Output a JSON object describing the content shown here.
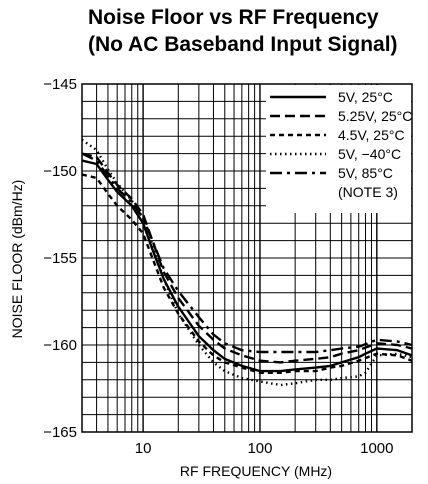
{
  "chart_data": {
    "type": "line",
    "title_line1": "Noise Floor vs RF Frequency",
    "title_line2": "(No AC Baseband Input Signal)",
    "xlabel": "RF FREQUENCY (MHz)",
    "ylabel": "NOISE FLOOR (dBm/Hz)",
    "x_scale": "log",
    "xlim": [
      3,
      2000
    ],
    "ylim": [
      -165,
      -145
    ],
    "x_ticks": [
      10,
      100,
      1000
    ],
    "x_tick_labels": [
      "10",
      "100",
      "1000"
    ],
    "y_ticks": [
      -145,
      -150,
      -155,
      -160,
      -165
    ],
    "y_tick_labels": [
      "−145",
      "−150",
      "−155",
      "−160",
      "−165"
    ],
    "grid": true,
    "legend_position": "top-right",
    "legend_note": "(NOTE 3)",
    "series": [
      {
        "name": "5V, 25°C",
        "dash": "solid",
        "points": [
          [
            3,
            -149.4
          ],
          [
            4,
            -149.6
          ],
          [
            5,
            -150.5
          ],
          [
            6,
            -151.2
          ],
          [
            8,
            -152.0
          ],
          [
            10,
            -153.0
          ],
          [
            12,
            -154.5
          ],
          [
            15,
            -156.2
          ],
          [
            20,
            -157.8
          ],
          [
            30,
            -159.5
          ],
          [
            40,
            -160.3
          ],
          [
            50,
            -160.8
          ],
          [
            70,
            -161.2
          ],
          [
            100,
            -161.5
          ],
          [
            150,
            -161.5
          ],
          [
            200,
            -161.4
          ],
          [
            300,
            -161.3
          ],
          [
            400,
            -161.2
          ],
          [
            500,
            -161.0
          ],
          [
            700,
            -160.7
          ],
          [
            800,
            -160.5
          ],
          [
            1000,
            -160.2
          ],
          [
            1500,
            -160.3
          ],
          [
            2000,
            -160.6
          ]
        ]
      },
      {
        "name": "5.25V, 25°C",
        "dash": "long-dash",
        "points": [
          [
            3,
            -149.0
          ],
          [
            4,
            -149.2
          ],
          [
            5,
            -150.1
          ],
          [
            6,
            -150.8
          ],
          [
            8,
            -151.6
          ],
          [
            10,
            -152.5
          ],
          [
            12,
            -154.0
          ],
          [
            15,
            -155.8
          ],
          [
            20,
            -157.3
          ],
          [
            30,
            -158.9
          ],
          [
            40,
            -159.7
          ],
          [
            50,
            -160.2
          ],
          [
            70,
            -160.6
          ],
          [
            100,
            -160.9
          ],
          [
            150,
            -161.0
          ],
          [
            200,
            -160.9
          ],
          [
            300,
            -160.8
          ],
          [
            400,
            -160.7
          ],
          [
            500,
            -160.5
          ],
          [
            700,
            -160.3
          ],
          [
            1000,
            -159.9
          ],
          [
            1500,
            -160.0
          ],
          [
            2000,
            -160.2
          ]
        ]
      },
      {
        "name": "4.5V, 25°C",
        "dash": "short-dash",
        "points": [
          [
            3,
            -150.2
          ],
          [
            4,
            -150.4
          ],
          [
            5,
            -151.3
          ],
          [
            6,
            -152.0
          ],
          [
            8,
            -152.8
          ],
          [
            10,
            -153.6
          ],
          [
            12,
            -155.0
          ],
          [
            15,
            -156.7
          ],
          [
            20,
            -158.2
          ],
          [
            30,
            -159.8
          ],
          [
            40,
            -160.6
          ],
          [
            50,
            -161.0
          ],
          [
            70,
            -161.3
          ],
          [
            100,
            -161.6
          ],
          [
            150,
            -161.6
          ],
          [
            200,
            -161.5
          ],
          [
            300,
            -161.5
          ],
          [
            400,
            -161.3
          ],
          [
            500,
            -161.2
          ],
          [
            700,
            -160.9
          ],
          [
            1000,
            -160.5
          ],
          [
            1500,
            -160.6
          ],
          [
            2000,
            -160.9
          ]
        ]
      },
      {
        "name": "5V, −40°C",
        "dash": "dotted",
        "points": [
          [
            3,
            -148.2
          ],
          [
            4,
            -148.8
          ],
          [
            5,
            -149.9
          ],
          [
            6,
            -150.7
          ],
          [
            8,
            -151.7
          ],
          [
            10,
            -152.7
          ],
          [
            12,
            -154.2
          ],
          [
            15,
            -156.2
          ],
          [
            20,
            -158.2
          ],
          [
            30,
            -160.0
          ],
          [
            40,
            -161.0
          ],
          [
            50,
            -161.5
          ],
          [
            70,
            -161.9
          ],
          [
            100,
            -162.1
          ],
          [
            150,
            -162.3
          ],
          [
            200,
            -162.2
          ],
          [
            300,
            -162.0
          ],
          [
            400,
            -162.0
          ],
          [
            500,
            -161.9
          ],
          [
            700,
            -161.8
          ],
          [
            800,
            -161.6
          ],
          [
            1000,
            -160.6
          ],
          [
            1500,
            -160.5
          ],
          [
            2000,
            -160.7
          ]
        ]
      },
      {
        "name": "5V, 85°C",
        "dash": "dash-dot",
        "points": [
          [
            3,
            -149.0
          ],
          [
            4,
            -149.4
          ],
          [
            5,
            -150.3
          ],
          [
            6,
            -151.0
          ],
          [
            8,
            -151.8
          ],
          [
            10,
            -152.7
          ],
          [
            12,
            -154.0
          ],
          [
            15,
            -155.6
          ],
          [
            20,
            -156.9
          ],
          [
            30,
            -158.4
          ],
          [
            40,
            -159.4
          ],
          [
            50,
            -159.9
          ],
          [
            70,
            -160.3
          ],
          [
            100,
            -160.4
          ],
          [
            150,
            -160.4
          ],
          [
            200,
            -160.4
          ],
          [
            300,
            -160.4
          ],
          [
            400,
            -160.3
          ],
          [
            500,
            -160.2
          ],
          [
            700,
            -160.1
          ],
          [
            1000,
            -159.7
          ],
          [
            1500,
            -159.8
          ],
          [
            2000,
            -160.0
          ]
        ]
      }
    ]
  }
}
